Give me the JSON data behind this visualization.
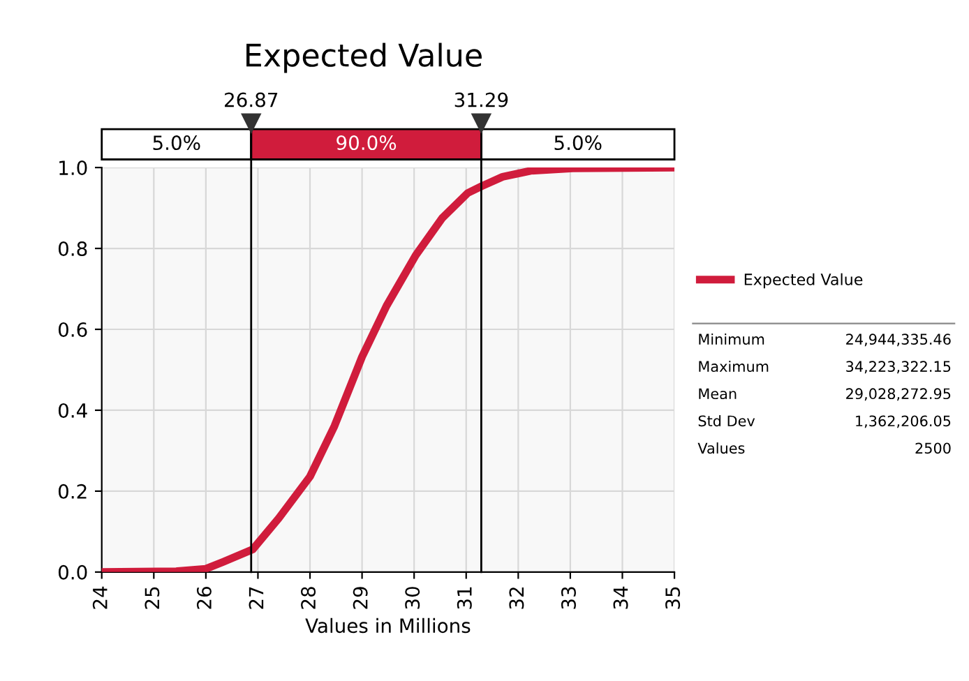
{
  "chart_data": {
    "type": "line",
    "title": "Expected Value",
    "xlabel": "Values in Millions",
    "series": [
      {
        "name": "Expected Value",
        "color": "#d01c3c",
        "x": [
          24,
          25.43,
          26.0,
          26.33,
          26.9,
          27.4,
          28.0,
          28.47,
          29.0,
          29.47,
          30.03,
          30.54,
          31.03,
          31.3,
          31.7,
          32.24,
          33.05,
          35
        ],
        "values": [
          0,
          0.002,
          0.008,
          0.025,
          0.056,
          0.133,
          0.236,
          0.361,
          0.532,
          0.658,
          0.783,
          0.875,
          0.937,
          0.954,
          0.977,
          0.992,
          0.998,
          1.0
        ]
      }
    ],
    "xlim": [
      24,
      35
    ],
    "xticks": [
      24,
      25,
      26,
      27,
      28,
      29,
      30,
      31,
      32,
      33,
      34,
      35
    ],
    "ylim": [
      0,
      1.0
    ],
    "yticks": [
      {
        "value": 0,
        "label": "0.0"
      },
      {
        "value": 0.2,
        "label": "0.2"
      },
      {
        "value": 0.4,
        "label": "0.4"
      },
      {
        "value": 0.6,
        "label": "0.6"
      },
      {
        "value": 0.8,
        "label": "0.8"
      },
      {
        "value": 1.0,
        "label": "1.0"
      }
    ],
    "grid": true,
    "legend": "right",
    "marker": "none",
    "line_style": "solid",
    "ref_lines": [
      {
        "axis": "x",
        "value": 26.87,
        "label": "26.87",
        "color": "#000000"
      },
      {
        "axis": "x",
        "value": 31.29,
        "label": "31.29",
        "color": "#000000"
      }
    ],
    "annotations": [
      "5.0%",
      "90.0%",
      "5.0%",
      "Minimum",
      "24,944,335.46",
      "Maximum",
      "34,223,322.15",
      "Mean",
      "29,028,272.95",
      "Std Dev",
      "1,362,206.05",
      "Values",
      "2500"
    ]
  }
}
